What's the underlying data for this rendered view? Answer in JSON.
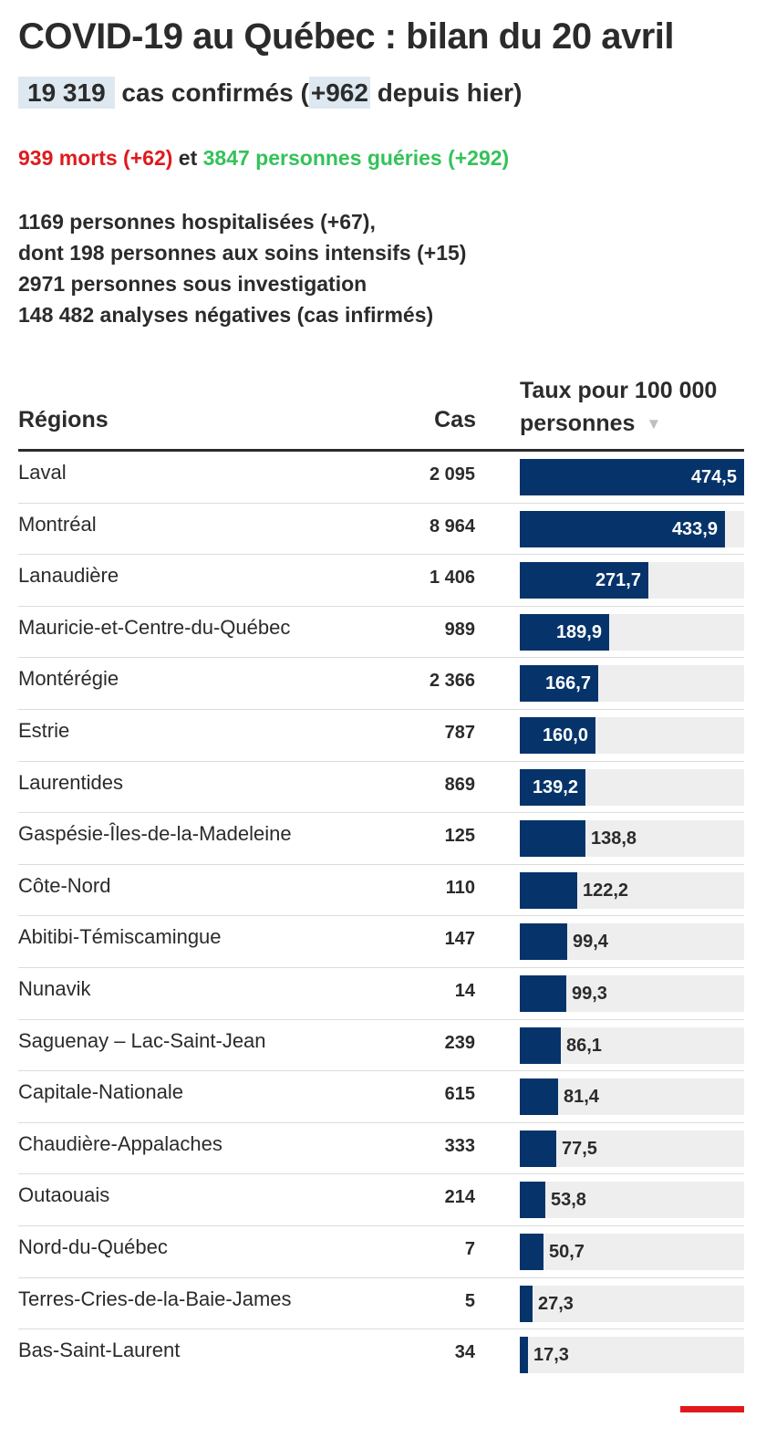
{
  "header": {
    "title": "COVID-19 au Québec : bilan du 20 avril",
    "cases_total": "19 319",
    "cases_text_a": "cas confirmés (",
    "cases_new": "+962",
    "cases_text_b": "depuis hier)",
    "deaths": "939 morts (+62)",
    "connector": "et",
    "recovered": "3847 personnes guéries (+292)"
  },
  "stats": [
    "1169 personnes hospitalisées (+67),",
    "dont 198 personnes aux soins intensifs (+15)",
    "2971 personnes sous investigation",
    "148 482 analyses négatives (cas infirmés)"
  ],
  "table_headers": {
    "region": "Régions",
    "cases": "Cas",
    "rate_line1": "Taux pour 100 000",
    "rate_line2": "personnes",
    "sort_icon": "sort-descending-icon"
  },
  "colors": {
    "bar": "#06346a",
    "track": "#eeeeee",
    "deaths": "#e0191d",
    "recovered": "#34c25a",
    "highlight": "#dde8f1"
  },
  "chart_data": {
    "type": "bar",
    "orientation": "horizontal",
    "xlim": [
      0,
      474.5
    ],
    "categories": [
      "Laval",
      "Montréal",
      "Lanaudière",
      "Mauricie-et-Centre-du-Québec",
      "Montérégie",
      "Estrie",
      "Laurentides",
      "Gaspésie-Îles-de-la-Madeleine",
      "Côte-Nord",
      "Abitibi-Témiscamingue",
      "Nunavik",
      "Saguenay – Lac-Saint-Jean",
      "Capitale-Nationale",
      "Chaudière-Appalaches",
      "Outaouais",
      "Nord-du-Québec",
      "Terres-Cries-de-la-Baie-James",
      "Bas-Saint-Laurent"
    ],
    "cases": [
      "2 095",
      "8 964",
      "1 406",
      "989",
      "2 366",
      "787",
      "869",
      "125",
      "110",
      "147",
      "14",
      "239",
      "615",
      "333",
      "214",
      "7",
      "5",
      "34"
    ],
    "values": [
      474.5,
      433.9,
      271.7,
      189.9,
      166.7,
      160.0,
      139.2,
      138.8,
      122.2,
      99.4,
      99.3,
      86.1,
      81.4,
      77.5,
      53.8,
      50.7,
      27.3,
      17.3
    ],
    "value_labels": [
      "474,5",
      "433,9",
      "271,7",
      "189,9",
      "166,7",
      "160,0",
      "139,2",
      "138,8",
      "122,2",
      "99,4",
      "99,3",
      "86,1",
      "81,4",
      "77,5",
      "53,8",
      "50,7",
      "27,3",
      "17,3"
    ],
    "labels_inside_count": 7
  }
}
